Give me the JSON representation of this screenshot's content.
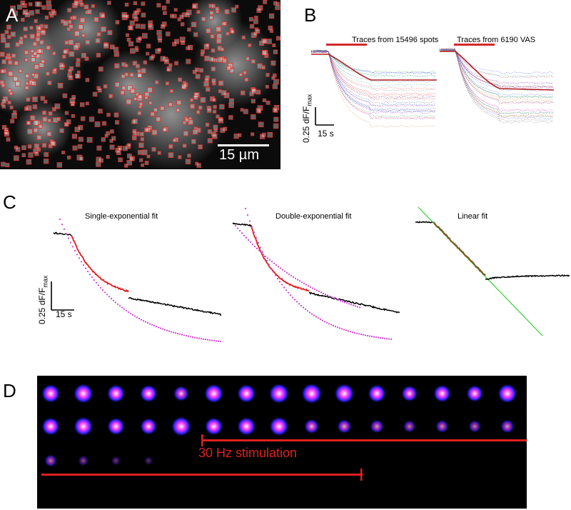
{
  "panels": {
    "a": {
      "letter": "A",
      "scale_bar_label": "15 µm",
      "colors": {
        "roi_box": "#e0302a",
        "scale_bar": "#ffffff",
        "background": "#0b0b0b"
      }
    },
    "b": {
      "letter": "B",
      "traces_spots_label": "Traces from 15496 spots",
      "traces_vas_label": "Traces from 6190 VAS",
      "y_scale_label": "0.25 dF/F",
      "y_scale_sub": "max",
      "time_scale_label": "15 s",
      "colors": {
        "stim_bar": "#d42a2a",
        "mean_trace": "#b01e1e"
      }
    },
    "c": {
      "letter": "C",
      "fit_titles": [
        "Single-exponential fit",
        "Double-exponential fit",
        "Linear fit"
      ],
      "y_scale_label": "0.25 dF/F",
      "y_scale_sub": "max",
      "time_scale_label": "15 s",
      "colors": {
        "data": "#000000",
        "fitted_region": "#e02020",
        "exp_fit": "#d040d0",
        "linear_fit": "#30d030"
      }
    },
    "d": {
      "letter": "D",
      "stimulation_label": "30 Hz stimulation",
      "colors": {
        "stim_bar": "#e02020",
        "spot_core": "#ffffff",
        "spot_mid": "#ff40ff",
        "spot_outer": "#3020ff"
      },
      "spot_intensity_rows": [
        [
          0.85,
          0.95,
          0.8,
          0.75,
          0.6,
          0.9,
          0.85,
          0.98,
          1.0,
          0.95,
          0.8,
          0.65,
          0.75,
          0.7,
          0.9
        ],
        [
          0.8,
          0.9,
          0.75,
          0.7,
          0.95,
          0.8,
          0.85,
          0.9,
          0.55,
          0.5,
          0.45,
          0.35,
          0.4,
          0.35,
          0.45
        ],
        [
          0.35,
          0.18,
          0.08,
          0.04,
          0.0,
          0.0,
          0.0,
          0.0,
          0.0,
          0.0,
          0.0,
          0.0,
          0.0,
          0.0,
          0.0
        ]
      ]
    }
  }
}
